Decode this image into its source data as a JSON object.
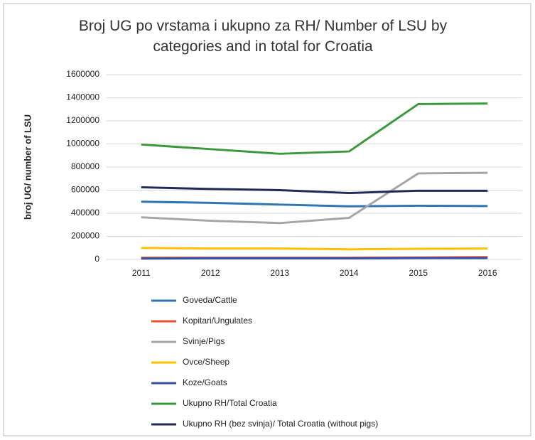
{
  "chart_data": {
    "type": "line",
    "title": "Broj UG po vrstama i ukupno za RH/ Number of LSU by categories and in total for Croatia",
    "y_label": "broj UG/ number of LSU",
    "categories": [
      "2011",
      "2012",
      "2013",
      "2014",
      "2015",
      "2016"
    ],
    "series": [
      {
        "name": "Goveda/Cattle",
        "color": "#2e75b6",
        "values": [
          500000,
          490000,
          475000,
          460000,
          465000,
          462000
        ]
      },
      {
        "name": "Kopitari/Ungulates",
        "color": "#e8502a",
        "values": [
          15000,
          15000,
          15000,
          15000,
          17000,
          20000
        ]
      },
      {
        "name": "Svinje/Pigs",
        "color": "#a5a5a5",
        "values": [
          365000,
          335000,
          315000,
          360000,
          745000,
          750000
        ]
      },
      {
        "name": "Ovce/Sheep",
        "color": "#ffc000",
        "values": [
          100000,
          95000,
          95000,
          88000,
          92000,
          95000
        ]
      },
      {
        "name": "Koze/Goats",
        "color": "#3a4fa8",
        "values": [
          8000,
          10000,
          10000,
          10000,
          12000,
          12000
        ]
      },
      {
        "name": "Ukupno RH/Total Croatia",
        "color": "#3a9a3a",
        "values": [
          995000,
          955000,
          915000,
          935000,
          1345000,
          1350000
        ]
      },
      {
        "name": "Ukupno RH (bez svinja)/ Total Croatia (without pigs)",
        "color": "#1f2a5c",
        "values": [
          625000,
          610000,
          600000,
          575000,
          595000,
          595000
        ]
      }
    ],
    "ylim": [
      0,
      1600000
    ],
    "yticks": [
      0,
      200000,
      400000,
      600000,
      800000,
      1000000,
      1200000,
      1400000,
      1600000
    ],
    "grid": true,
    "legend": "bottom"
  }
}
